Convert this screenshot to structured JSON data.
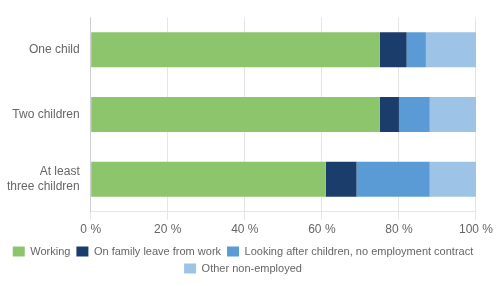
{
  "chart_data": {
    "type": "bar",
    "orientation": "horizontal",
    "stacked": true,
    "categories": [
      "One child",
      "Two children",
      "At least\nthree children"
    ],
    "series": [
      {
        "name": "Working",
        "color": "#8DC56C",
        "values": [
          75,
          75,
          61
        ]
      },
      {
        "name": "On family leave from work",
        "color": "#1A3D6B",
        "values": [
          7,
          5,
          8
        ]
      },
      {
        "name": "Looking after children, no employment contract",
        "color": "#5B9BD5",
        "values": [
          5,
          8,
          19
        ]
      },
      {
        "name": "Other non-employed",
        "color": "#9DC3E6",
        "values": [
          13,
          12,
          12
        ]
      }
    ],
    "xlim": [
      0,
      100
    ],
    "xticks": [
      {
        "value": 0,
        "label": "0 %"
      },
      {
        "value": 20,
        "label": "20 %"
      },
      {
        "value": 40,
        "label": "40 %"
      },
      {
        "value": 60,
        "label": "60 %"
      },
      {
        "value": 80,
        "label": "80 %"
      },
      {
        "value": 100,
        "label": "100 %"
      }
    ],
    "grid": true,
    "legend": "bottom"
  }
}
